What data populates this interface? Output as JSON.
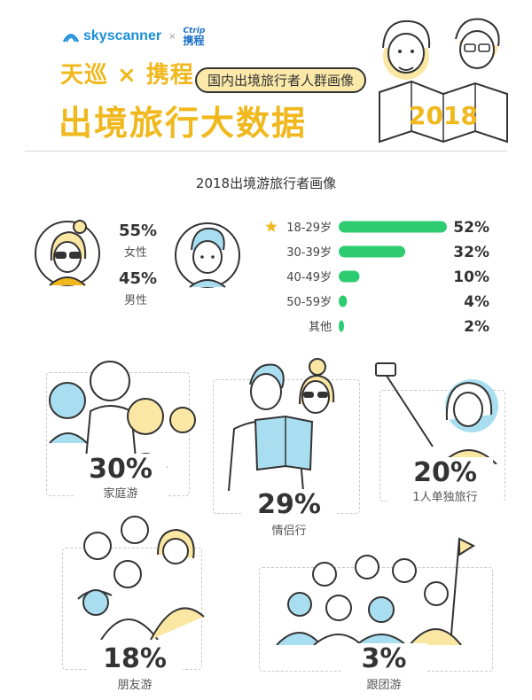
{
  "header": {
    "brand_left": "skyscanner",
    "brand_x": "×",
    "brand_right_en": "Ctrip",
    "brand_right_cn": "携程",
    "title_line1": "天巡 × 携程",
    "title_sub": "国内出境旅行者人群画像",
    "title_line2": "出境旅行大数据",
    "year": "2018"
  },
  "section_title": "2018出境游旅行者画像",
  "gender": {
    "female_pct": "55%",
    "female_label": "女性",
    "male_pct": "45%",
    "male_label": "男性"
  },
  "colors": {
    "accent_yellow": "#f0b81c",
    "bar_green": "#2ecc71",
    "ink": "#333333",
    "light_blue": "#a9def0"
  },
  "chart_data": {
    "type": "bar",
    "orientation": "horizontal",
    "title": "",
    "categories": [
      "18-29岁",
      "30-39岁",
      "40-49岁",
      "50-59岁",
      "其他"
    ],
    "values": [
      52,
      32,
      10,
      4,
      2
    ],
    "value_labels": [
      "52%",
      "32%",
      "10%",
      "4%",
      "2%"
    ],
    "highlight_index": 0,
    "xlim": [
      0,
      52
    ]
  },
  "travel_types": [
    {
      "pct": "30%",
      "label": "家庭游"
    },
    {
      "pct": "29%",
      "label": "情侣行"
    },
    {
      "pct": "20%",
      "label": "1人单独旅行"
    },
    {
      "pct": "18%",
      "label": "朋友游"
    },
    {
      "pct": "3%",
      "label": "跟团游"
    }
  ]
}
